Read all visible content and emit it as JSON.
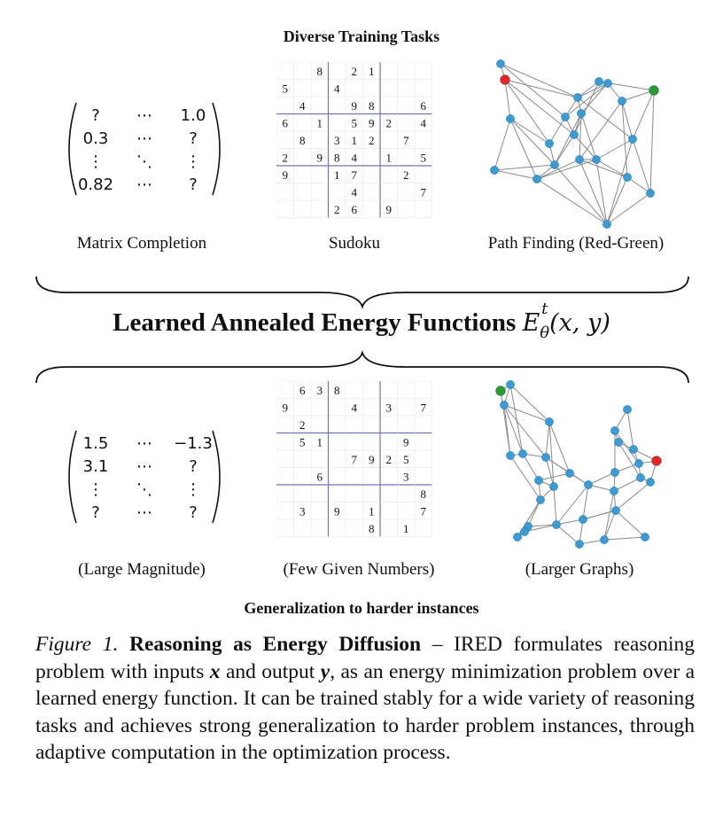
{
  "header": {
    "top": "Diverse Training Tasks",
    "bottom": "Generalization to harder instances"
  },
  "center": {
    "title_text": "Learned Annealed Energy Functions",
    "title_math": "E",
    "title_sup": "t",
    "title_sub": "θ",
    "title_args": "(x, y)"
  },
  "panels": {
    "top": {
      "matrix_label": "Matrix Completion",
      "sudoku_label": "Sudoku",
      "graph_label": "Path Finding (Red-Green)",
      "matrix": [
        [
          "?",
          "⋯",
          "1.0"
        ],
        [
          "0.3",
          "⋯",
          "?"
        ],
        [
          "⋮",
          "⋱",
          "⋮"
        ],
        [
          "0.82",
          "⋯",
          "?"
        ]
      ],
      "sudoku": [
        "..8.21...",
        "5..4.....",
        ".4..98..6",
        "6.1.592.4",
        ".8.312.7.",
        "2.984.1.5",
        "9..17..2.",
        "....4...7",
        "...26.9.."
      ]
    },
    "bottom": {
      "matrix_label": "(Large Magnitude)",
      "sudoku_label": "(Few Given Numbers)",
      "graph_label": "(Larger Graphs)",
      "matrix": [
        [
          "1.5",
          "⋯",
          "−1.3"
        ],
        [
          "3.1",
          "⋯",
          "?"
        ],
        [
          "⋮",
          "⋱",
          "⋮"
        ],
        [
          "?",
          "⋯",
          "?"
        ]
      ],
      "sudoku": [
        ".638.....",
        "9...4.3.7",
        ".2.......",
        ".51....9.",
        "....7925.",
        "..6....3.",
        "........8",
        ".3.9.1..7",
        ".....8.1."
      ]
    }
  },
  "caption": {
    "fig": "Figure 1.",
    "title": "Reasoning as Energy Diffusion",
    "p1": " – IRED formulates reasoning problem with inputs ",
    "x": "x",
    "p2": " and output ",
    "y": "y",
    "p3": ", as an energy minimization problem over a learned energy function. It can be trained stably for a wide variety of reasoning tasks and achieves strong generalization to harder problem instances, through adaptive computation in the optimization process."
  },
  "colors": {
    "node": "#3a9bd6",
    "start": "#e8261e",
    "goal": "#2c9a2c",
    "edge": "#8a8a8a",
    "grid": "#7373b8"
  }
}
